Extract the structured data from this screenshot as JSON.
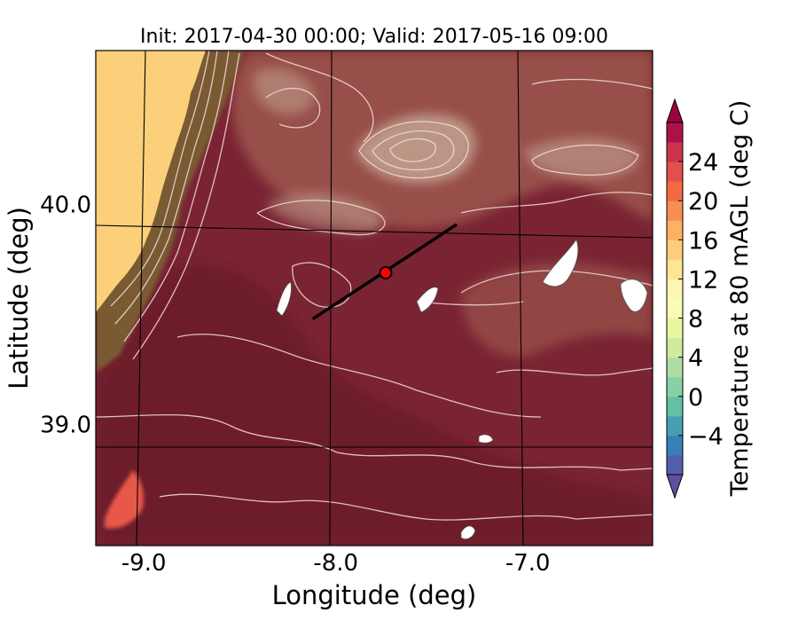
{
  "chart_data": {
    "type": "heatmap",
    "title": "Init: 2017-04-30 00:00; Valid: 2017-05-16 09:00",
    "xlabel": "Longitude (deg)",
    "ylabel": "Latitude (deg)",
    "xlim": [
      -9.25,
      -6.35
    ],
    "ylim": [
      38.45,
      40.7
    ],
    "x_ticks": [
      {
        "value": -9.0,
        "label": "-9.0"
      },
      {
        "value": -8.0,
        "label": "-8.0"
      },
      {
        "value": -7.0,
        "label": "-7.0"
      }
    ],
    "y_ticks": [
      {
        "value": 40.0,
        "label": "40.0"
      },
      {
        "value": 39.0,
        "label": "39.0"
      }
    ],
    "grid": true,
    "cross_section": {
      "start": {
        "lon": -8.12,
        "lat": 39.48
      },
      "end": {
        "lon": -7.37,
        "lat": 39.91
      },
      "point": {
        "lon": -7.74,
        "lat": 39.69
      },
      "line_color": "#000000",
      "point_color": "#ff0000"
    },
    "colorbar": {
      "label": "Temperature at 80 mAGL (deg C)",
      "min": -8,
      "max": 28,
      "ticks": [
        {
          "value": -4,
          "label": "−4"
        },
        {
          "value": 0,
          "label": "0"
        },
        {
          "value": 4,
          "label": "4"
        },
        {
          "value": 8,
          "label": "8"
        },
        {
          "value": 12,
          "label": "12"
        },
        {
          "value": 16,
          "label": "16"
        },
        {
          "value": 20,
          "label": "20"
        },
        {
          "value": 24,
          "label": "24"
        }
      ],
      "extend": "both",
      "colormap": "Spectral_r",
      "stops": [
        "#5e4fa2",
        "#3288bd",
        "#66c2a5",
        "#abdda4",
        "#e6f598",
        "#ffffbf",
        "#fee08b",
        "#fdae61",
        "#f46d43",
        "#d53e4f",
        "#9e0142"
      ]
    },
    "field_colors": {
      "coast_ocean": "#fcd07b",
      "coastal_slope": "#7a5a32",
      "plain": "#7a2433",
      "warm_region": "#6d1a2a",
      "plateau": "#985048",
      "highland": "#c2a38f",
      "hotspot": "#e8584a",
      "contour": "#f2dcdc"
    }
  }
}
